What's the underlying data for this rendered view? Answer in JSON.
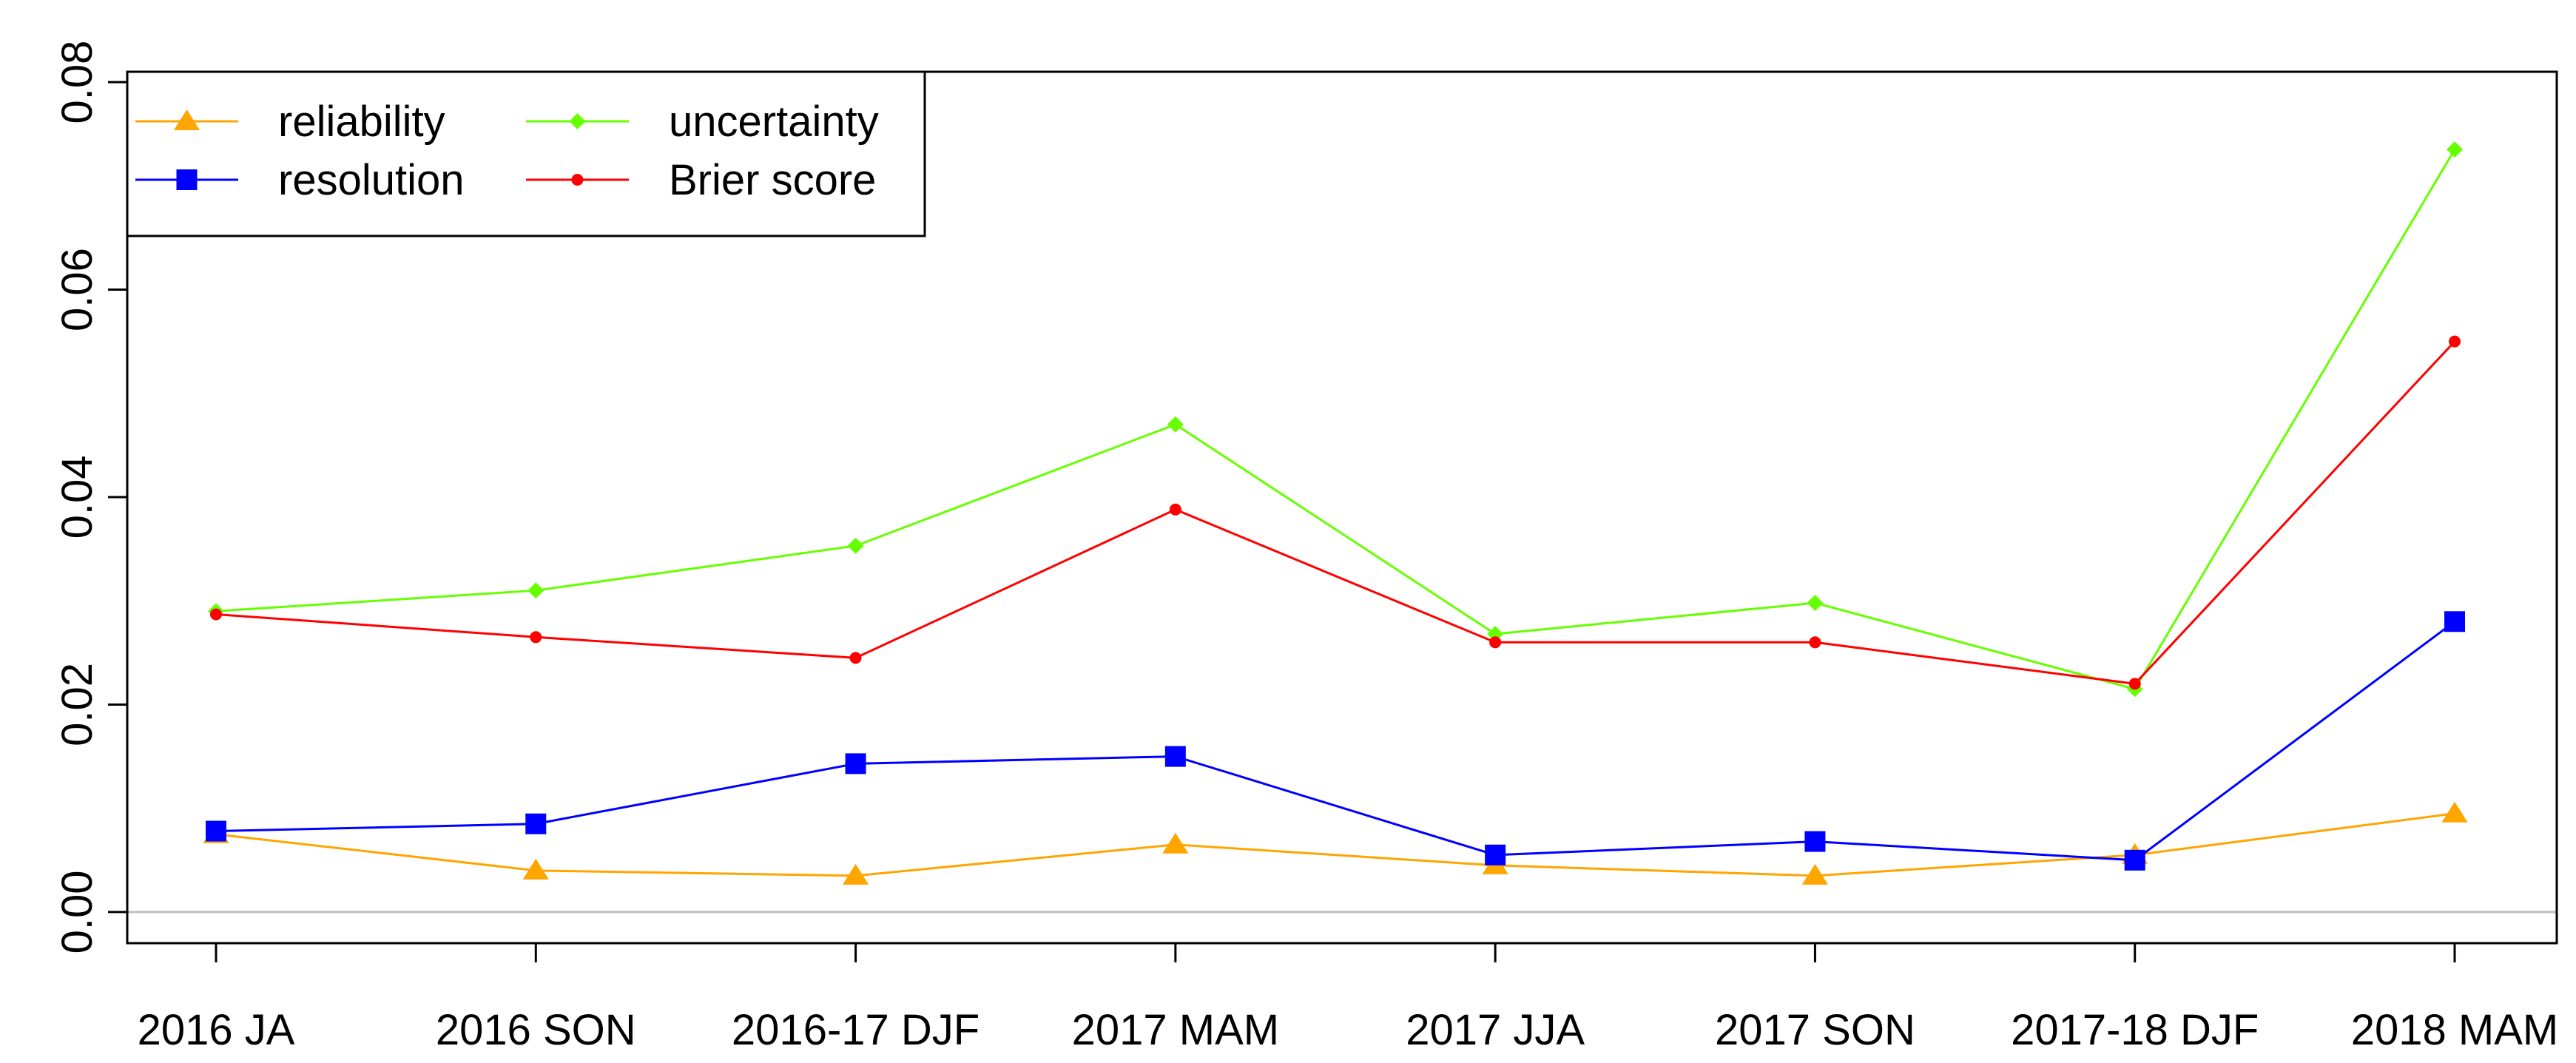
{
  "chart_data": {
    "type": "line",
    "title": "",
    "xlabel": "",
    "ylabel": "",
    "categories": [
      "2016 JA",
      "2016 SON",
      "2016-17 DJF",
      "2017 MAM",
      "2017 JJA",
      "2017 SON",
      "2017-18 DJF",
      "2018 MAM"
    ],
    "ylim": [
      -0.003,
      0.081
    ],
    "yticks": [
      0.0,
      0.02,
      0.04,
      0.06,
      0.08
    ],
    "ytick_labels": [
      "0.00",
      "0.02",
      "0.04",
      "0.06",
      "0.08"
    ],
    "reference_line": 0,
    "grid": false,
    "legend_position": "top-left",
    "series": [
      {
        "name": "reliability",
        "color": "#FFA500",
        "marker": "triangle",
        "values": [
          0.0075,
          0.004,
          0.0035,
          0.0065,
          0.0045,
          0.0035,
          0.0055,
          0.0095
        ]
      },
      {
        "name": "resolution",
        "color": "#0000FF",
        "marker": "square",
        "values": [
          0.0078,
          0.0085,
          0.0143,
          0.015,
          0.0055,
          0.0068,
          0.005,
          0.028
        ]
      },
      {
        "name": "uncertainty",
        "color": "#66FF00",
        "marker": "diamond",
        "values": [
          0.029,
          0.031,
          0.0353,
          0.047,
          0.0268,
          0.0298,
          0.0215,
          0.0735
        ]
      },
      {
        "name": "Brier score",
        "color": "#FF0000",
        "marker": "circle",
        "values": [
          0.0287,
          0.0265,
          0.0245,
          0.0388,
          0.026,
          0.026,
          0.022,
          0.055
        ]
      }
    ]
  }
}
